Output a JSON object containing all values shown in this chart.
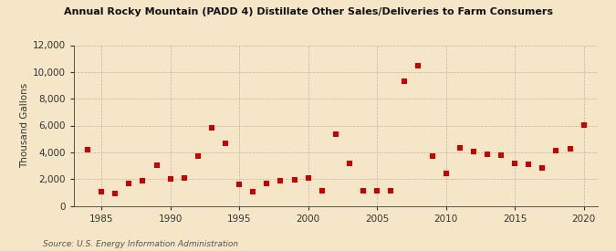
{
  "title": "Annual Rocky Mountain (PADD 4) Distillate Other Sales/Deliveries to Farm Consumers",
  "ylabel": "Thousand Gallons",
  "source": "Source: U.S. Energy Information Administration",
  "background_color": "#f5e6c8",
  "plot_bg_color": "#f5e6c8",
  "marker_color": "#cc0000",
  "marker_size": 16,
  "ylim": [
    0,
    12000
  ],
  "yticks": [
    0,
    2000,
    4000,
    6000,
    8000,
    10000,
    12000
  ],
  "xlim": [
    1983,
    2021
  ],
  "xticks": [
    1985,
    1990,
    1995,
    2000,
    2005,
    2010,
    2015,
    2020
  ],
  "years": [
    1984,
    1985,
    1986,
    1987,
    1988,
    1989,
    1990,
    1991,
    1992,
    1993,
    1994,
    1995,
    1996,
    1997,
    1998,
    1999,
    2000,
    2001,
    2002,
    2003,
    2004,
    2005,
    2006,
    2007,
    2008,
    2009,
    2010,
    2011,
    2012,
    2013,
    2014,
    2015,
    2016,
    2017,
    2018,
    2019,
    2020
  ],
  "values": [
    4200,
    1050,
    900,
    1700,
    1850,
    3050,
    2000,
    2100,
    3750,
    5850,
    4650,
    1600,
    1050,
    1700,
    1850,
    1950,
    2050,
    1150,
    5350,
    3200,
    1150,
    1100,
    1100,
    9300,
    10450,
    3700,
    2450,
    4350,
    4050,
    3850,
    3800,
    3150,
    3100,
    2800,
    4150,
    4250,
    6050
  ]
}
